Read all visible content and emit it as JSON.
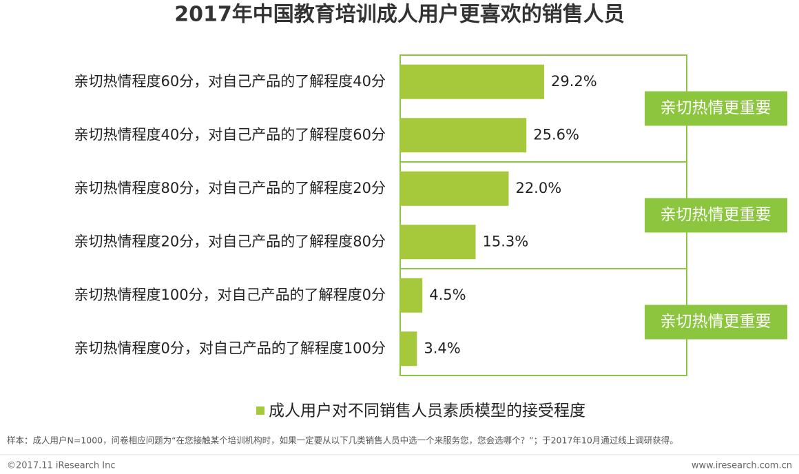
{
  "chart_data": {
    "type": "hbar",
    "title": "2017年中国教育培训成人用户更喜欢的销售人员",
    "categories": [
      "亲切热情程度60分，对自己产品的了解程度40分",
      "亲切热情程度40分，对自己产品的了解程度60分",
      "亲切热情程度80分，对自己产品的了解程度20分",
      "亲切热情程度20分，对自己产品的了解程度80分",
      "亲切热情程度100分，对自己产品的了解程度0分",
      "亲切热情程度0分，对自己产品的了解程度100分"
    ],
    "series": [
      {
        "name": "成人用户对不同销售人员素质模型的接受程度",
        "color": "#a5c93a",
        "values": [
          29.2,
          25.6,
          22.0,
          15.3,
          4.5,
          3.4
        ],
        "value_labels": [
          "29.2%",
          "25.6%",
          "22.0%",
          "15.3%",
          "4.5%",
          "3.4%"
        ]
      }
    ],
    "annotations": [
      "亲切热情更重要",
      "亲切热情更重要",
      "亲切热情更重要"
    ],
    "annotation_color": "#8cc63f",
    "frame_color": "#8cc63f",
    "footnote": "样本：成人用户N=1000，问卷相应问题为“在您接触某个培训机构时，如果一定要从以下几类销售人员中选一个来服务您，您会选哪个？”；于2017年10月通过线上调研获得。",
    "copyright": "©2017.11 iResearch Inc",
    "website": "www.iresearch.com.cn"
  }
}
